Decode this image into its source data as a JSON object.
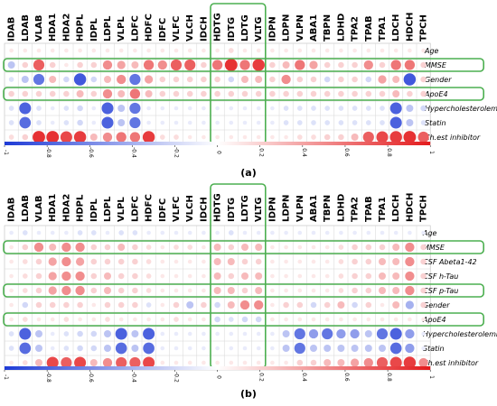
{
  "chart_data": [
    {
      "type": "heatmap",
      "panel_label": "(a)",
      "columns": [
        "IDAB",
        "LDAB",
        "VLAB",
        "HDA1",
        "HDA2",
        "HDPL",
        "IDPL",
        "LDPL",
        "VLPL",
        "LDFC",
        "HDFC",
        "IDFC",
        "VLFC",
        "VLCH",
        "IDCH",
        "HDTG",
        "IDTG",
        "LDTG",
        "VLTG",
        "IDPN",
        "LDPN",
        "VLPN",
        "ABA1",
        "TBPN",
        "LDHD",
        "TPA2",
        "TPAB",
        "TPA1",
        "LDCH",
        "HDCH",
        "TPCH"
      ],
      "rows": [
        "Age",
        "MMSE",
        "Gender",
        "ApoE4",
        "Hypercholesterolemia",
        "Statin",
        "Ch.est inhibitor"
      ],
      "values": [
        [
          0.1,
          0.1,
          0.1,
          0.1,
          0.1,
          0.1,
          0.1,
          0.1,
          0.1,
          0.1,
          0.1,
          0.1,
          0.1,
          0.1,
          0.1,
          0.1,
          0.15,
          0.1,
          0.1,
          0.1,
          0.1,
          0.1,
          0.1,
          0.1,
          0.1,
          0.1,
          0.1,
          0.1,
          0.1,
          0.1,
          0.1
        ],
        [
          -0.3,
          0.2,
          0.7,
          0.2,
          0.1,
          0.2,
          0.2,
          0.5,
          0.4,
          0.3,
          0.6,
          0.5,
          0.7,
          0.7,
          0.2,
          0.6,
          0.9,
          0.6,
          0.85,
          0.2,
          0.3,
          0.6,
          0.4,
          0.2,
          0.2,
          0.2,
          0.5,
          0.2,
          0.6,
          0.6,
          0.2
        ],
        [
          -0.15,
          -0.3,
          -0.7,
          0.3,
          -0.2,
          -0.85,
          -0.2,
          0.3,
          0.5,
          -0.7,
          0.4,
          0.2,
          0.2,
          0.2,
          0.2,
          0.2,
          -0.2,
          0.3,
          0.3,
          0.2,
          0.5,
          0.2,
          0.2,
          -0.2,
          0.2,
          0.2,
          -0.2,
          0.4,
          0.3,
          -0.85,
          0.2
        ],
        [
          0.2,
          0.2,
          0.2,
          0.2,
          0.2,
          0.3,
          0.2,
          0.5,
          0.3,
          0.6,
          0.3,
          0.2,
          0.2,
          0.2,
          0.2,
          0.2,
          0.2,
          0.2,
          0.2,
          0.2,
          0.2,
          0.2,
          0.2,
          0.2,
          0.2,
          0.2,
          0.2,
          0.2,
          0.3,
          0.2,
          0.2
        ],
        [
          -0.15,
          -0.8,
          -0.15,
          -0.1,
          -0.15,
          -0.2,
          -0.1,
          -0.8,
          -0.3,
          -0.7,
          -0.1,
          -0.1,
          -0.1,
          -0.1,
          -0.1,
          -0.1,
          -0.1,
          -0.1,
          -0.1,
          -0.1,
          -0.15,
          -0.15,
          -0.15,
          -0.15,
          -0.15,
          -0.15,
          -0.15,
          -0.15,
          -0.8,
          -0.3,
          -0.2
        ],
        [
          -0.15,
          -0.75,
          -0.15,
          -0.1,
          -0.15,
          -0.2,
          -0.1,
          -0.8,
          -0.3,
          -0.7,
          -0.1,
          -0.1,
          -0.1,
          -0.1,
          -0.1,
          -0.1,
          -0.1,
          -0.1,
          -0.1,
          -0.1,
          -0.15,
          -0.15,
          -0.15,
          -0.15,
          -0.15,
          -0.15,
          -0.15,
          -0.15,
          -0.8,
          -0.3,
          -0.15
        ],
        [
          0.15,
          0.2,
          0.9,
          0.9,
          0.8,
          0.85,
          0.3,
          0.5,
          0.6,
          0.6,
          0.85,
          0.15,
          0.15,
          0.1,
          0.1,
          0.1,
          0.1,
          0.1,
          0.1,
          0.1,
          0.1,
          0.15,
          0.15,
          0.2,
          0.2,
          0.3,
          0.7,
          0.8,
          0.85,
          0.9,
          0.7
        ]
      ],
      "highlight_rows": [
        "MMSE",
        "ApoE4"
      ],
      "highlight_columns": [
        "HDTG",
        "VLTG"
      ],
      "colorbar": {
        "min": -1,
        "max": 1,
        "ticks": [
          -1,
          -0.8,
          -0.6,
          -0.4,
          -0.2,
          0,
          0.2,
          0.4,
          0.6,
          0.8,
          1
        ],
        "low_color": "#1f3bd6",
        "mid_color": "#ffffff",
        "high_color": "#e31a1c"
      },
      "highlight_color": "#4caf50"
    },
    {
      "type": "heatmap",
      "panel_label": "(b)",
      "columns": [
        "IDAB",
        "LDAB",
        "VLAB",
        "HDA1",
        "HDA2",
        "HDPL",
        "IDPL",
        "LDPL",
        "VLPL",
        "LDFC",
        "HDFC",
        "IDFC",
        "VLFC",
        "VLCH",
        "IDCH",
        "HDTG",
        "IDTG",
        "LDTG",
        "VLTG",
        "IDPN",
        "LDPN",
        "VLPN",
        "ABA1",
        "TBPN",
        "LDHD",
        "TPA2",
        "TPAB",
        "TPA1",
        "LDCH",
        "HDCH",
        "TPCH"
      ],
      "rows": [
        "Age",
        "MMSE",
        "CSF Abeta1-42",
        "CSF h-Tau",
        "CSF p-Tau",
        "Gender",
        "ApoE4",
        "Hypercholesterolemia",
        "Statin",
        "Ch.est inhibitor"
      ],
      "values": [
        [
          -0.1,
          -0.15,
          -0.1,
          -0.1,
          -0.1,
          -0.15,
          -0.15,
          -0.1,
          -0.15,
          -0.15,
          -0.1,
          -0.1,
          -0.1,
          -0.1,
          -0.1,
          -0.1,
          -0.15,
          -0.1,
          -0.1,
          -0.1,
          -0.1,
          -0.1,
          -0.1,
          -0.1,
          -0.1,
          -0.1,
          -0.1,
          -0.1,
          -0.1,
          -0.1,
          -0.1
        ],
        [
          0.1,
          0.2,
          0.5,
          0.3,
          0.5,
          0.5,
          0.2,
          0.2,
          0.3,
          0.2,
          0.15,
          0.1,
          0.15,
          0.15,
          0.1,
          0.3,
          0.2,
          0.3,
          0.3,
          0.1,
          0.1,
          0.1,
          0.1,
          0.1,
          0.15,
          0.2,
          0.2,
          0.2,
          0.3,
          0.5,
          0.2
        ],
        [
          0.1,
          0.15,
          0.2,
          0.4,
          0.5,
          0.4,
          0.2,
          0.2,
          0.2,
          0.2,
          0.15,
          0.1,
          0.1,
          0.1,
          0.1,
          0.3,
          0.3,
          0.2,
          0.2,
          0.1,
          0.1,
          0.1,
          0.1,
          0.1,
          0.15,
          0.2,
          0.2,
          0.3,
          0.3,
          0.5,
          0.2
        ],
        [
          0.1,
          0.15,
          0.2,
          0.4,
          0.5,
          0.5,
          0.2,
          0.3,
          0.2,
          0.2,
          0.15,
          0.1,
          0.1,
          0.1,
          0.1,
          0.3,
          0.2,
          0.3,
          0.3,
          0.1,
          0.1,
          0.1,
          0.1,
          0.1,
          0.15,
          0.2,
          0.2,
          0.3,
          0.3,
          0.5,
          0.2
        ],
        [
          0.1,
          0.15,
          0.2,
          0.4,
          0.5,
          0.5,
          0.2,
          0.3,
          0.2,
          0.2,
          0.15,
          0.1,
          0.1,
          0.1,
          0.1,
          0.3,
          0.3,
          0.2,
          0.3,
          0.1,
          0.1,
          0.1,
          0.1,
          0.1,
          0.15,
          0.2,
          0.2,
          0.3,
          0.3,
          0.5,
          0.2
        ],
        [
          0.1,
          -0.2,
          0.2,
          0.2,
          0.2,
          0.2,
          0.1,
          0.2,
          0.2,
          0.2,
          -0.15,
          0.1,
          0.2,
          -0.3,
          0.2,
          -0.2,
          0.3,
          0.5,
          0.5,
          0.1,
          0.2,
          0.2,
          -0.2,
          0.2,
          0.3,
          -0.2,
          0.2,
          0.1,
          0.3,
          -0.4,
          0.2
        ],
        [
          0.1,
          0.15,
          0.1,
          0.1,
          0.15,
          0.1,
          0.1,
          0.15,
          0.1,
          0.1,
          0.1,
          0.1,
          0.15,
          0.1,
          0.1,
          -0.2,
          -0.15,
          -0.2,
          -0.2,
          0.1,
          0.1,
          0.1,
          0.1,
          0.1,
          0.1,
          0.1,
          0.1,
          0.1,
          0.1,
          0.1,
          0.1
        ],
        [
          -0.15,
          -0.8,
          -0.3,
          -0.1,
          -0.15,
          -0.2,
          -0.2,
          -0.3,
          -0.8,
          -0.3,
          -0.8,
          -0.1,
          -0.1,
          -0.1,
          -0.1,
          -0.1,
          -0.1,
          -0.1,
          -0.1,
          -0.1,
          -0.3,
          -0.7,
          -0.5,
          -0.7,
          -0.5,
          -0.5,
          -0.3,
          -0.7,
          -0.8,
          -0.5,
          -0.1
        ],
        [
          -0.15,
          -0.75,
          -0.3,
          -0.1,
          -0.15,
          -0.2,
          -0.2,
          -0.3,
          -0.75,
          -0.3,
          -0.75,
          -0.1,
          -0.1,
          -0.1,
          -0.1,
          -0.1,
          -0.1,
          -0.1,
          -0.1,
          -0.1,
          -0.3,
          -0.7,
          -0.3,
          -0.3,
          -0.3,
          -0.3,
          -0.3,
          -0.3,
          -0.75,
          -0.5,
          -0.1
        ],
        [
          0.1,
          0.15,
          0.3,
          0.8,
          0.7,
          0.8,
          0.3,
          0.5,
          0.7,
          0.7,
          0.8,
          0.1,
          0.1,
          0.1,
          0.1,
          0.1,
          0.1,
          0.1,
          0.1,
          0.1,
          0.1,
          0.2,
          0.2,
          0.3,
          0.3,
          0.4,
          0.5,
          0.7,
          0.8,
          0.85,
          0.5
        ]
      ],
      "highlight_rows": [
        "MMSE",
        "CSF p-Tau",
        "ApoE4"
      ],
      "highlight_columns": [
        "HDTG",
        "VLTG"
      ],
      "colorbar": {
        "min": -1,
        "max": 1,
        "ticks": [
          -1,
          -0.8,
          -0.6,
          -0.4,
          -0.2,
          0,
          0.2,
          0.4,
          0.6,
          0.8,
          1
        ],
        "low_color": "#1f3bd6",
        "mid_color": "#ffffff",
        "high_color": "#e31a1c"
      },
      "highlight_color": "#4caf50"
    }
  ]
}
